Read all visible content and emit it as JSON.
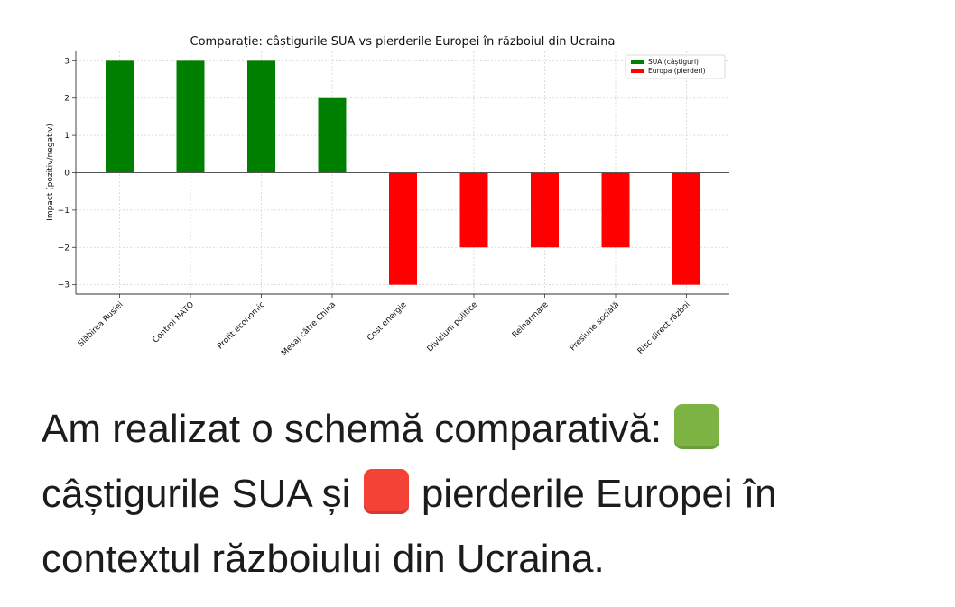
{
  "chart_data": {
    "type": "bar",
    "title": "Comparație: câștigurile SUA vs pierderile Europei în războiul din Ucraina",
    "xlabel": "",
    "ylabel": "Impact (pozitiv/negativ)",
    "ylim": [
      -3.25,
      3.25
    ],
    "yticks": [
      3,
      2,
      1,
      0,
      -1,
      -2,
      -3
    ],
    "ytick_labels": [
      "3",
      "2",
      "1",
      "0",
      "−1",
      "−2",
      "−3"
    ],
    "grid": true,
    "legend_position": "top-right",
    "categories": [
      "Slăbirea Rusiei",
      "Control NATO",
      "Profit economic",
      "Mesaj către China",
      "Cost energie",
      "Diviziuni politice",
      "Reînarmare",
      "Presiune socială",
      "Risc direct război"
    ],
    "series": [
      {
        "name": "SUA (câștiguri)",
        "color": "#008000",
        "values": [
          3,
          3,
          3,
          2,
          null,
          null,
          null,
          null,
          null
        ]
      },
      {
        "name": "Europa (pierderi)",
        "color": "#ff0000",
        "values": [
          null,
          null,
          null,
          null,
          -3,
          -2,
          -2,
          -2,
          -3
        ]
      }
    ]
  },
  "message": {
    "part1": "Am realizat o schemă comparativă:",
    "green_emoji": "green-square",
    "part2": "câștigurile SUA și",
    "red_emoji": "red-square",
    "part3": "pierderile Europei în contextul războiului din Ucraina.",
    "green_color": "#7cb342",
    "red_color": "#f44336"
  }
}
